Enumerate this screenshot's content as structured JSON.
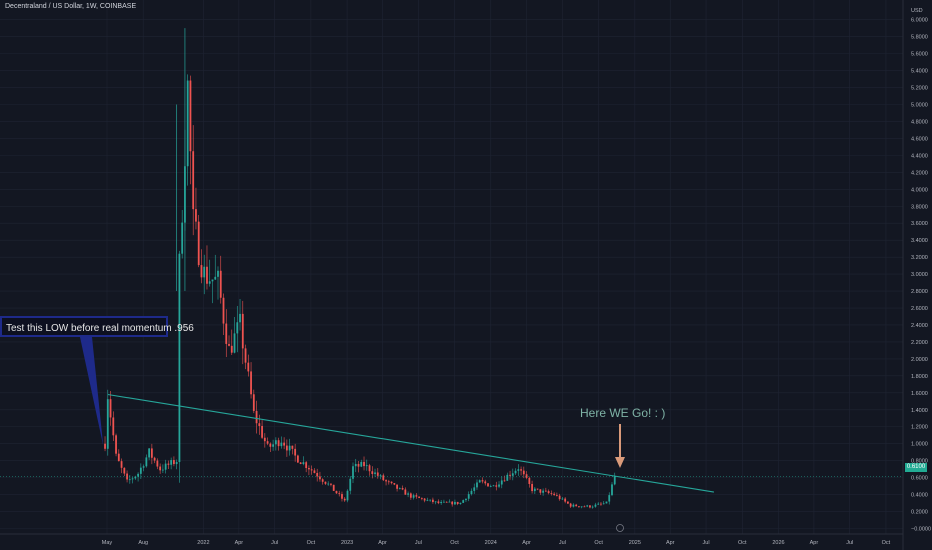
{
  "header": {
    "title": "Decentraland / US Dollar, 1W, COINBASE"
  },
  "currency": "USD",
  "current_price_label": "0.6100",
  "annotations": {
    "callout": "Test this LOW before real momentum .956",
    "here_we_go": "Here WE Go! : )"
  },
  "colors": {
    "background": "#131722",
    "grid": "#1f2433",
    "up_candle": "#26a69a",
    "down_candle": "#ef5350",
    "trendline": "#26a69a",
    "arrow": "#d99a7a",
    "price_tag": "#22ab94"
  },
  "chart_data": {
    "type": "candlestick",
    "title": "Decentraland / US Dollar, 1W, COINBASE",
    "xlabel": "",
    "ylabel": "USD",
    "ylim": [
      0,
      6.0
    ],
    "grid": true,
    "x_ticks": [
      "May",
      "Aug",
      "2022",
      "Apr",
      "Jul",
      "Oct",
      "2023",
      "Apr",
      "Jul",
      "Oct",
      "2024",
      "Apr",
      "Jul",
      "Oct",
      "2025",
      "Apr",
      "Jul",
      "Oct",
      "2026",
      "Apr",
      "Jul",
      "Oct"
    ],
    "y_ticks": [
      "6.0000",
      "5.8000",
      "5.6000",
      "5.4000",
      "5.2000",
      "5.0000",
      "4.8000",
      "4.6000",
      "4.4000",
      "4.2000",
      "4.0000",
      "3.8000",
      "3.6000",
      "3.4000",
      "3.2000",
      "3.0000",
      "2.8000",
      "2.6000",
      "2.4000",
      "2.2000",
      "2.0000",
      "1.8000",
      "1.6000",
      "1.4000",
      "1.2000",
      "1.0000",
      "0.8000",
      "0.6000",
      "0.4000",
      "0.2000",
      "−0.0000"
    ],
    "price_path": [
      [
        "2021-04-26",
        1.0
      ],
      [
        "2021-05-03",
        1.58
      ],
      [
        "2021-05-24",
        0.85
      ],
      [
        "2021-06-21",
        0.55
      ],
      [
        "2021-07-19",
        0.65
      ],
      [
        "2021-08-16",
        0.9
      ],
      [
        "2021-09-13",
        0.7
      ],
      [
        "2021-10-25",
        0.8
      ],
      [
        "2021-11-01",
        3.1
      ],
      [
        "2021-11-22",
        5.2
      ],
      [
        "2021-12-06",
        3.6
      ],
      [
        "2022-01-03",
        3.0
      ],
      [
        "2022-02-07",
        2.9
      ],
      [
        "2022-03-07",
        2.1
      ],
      [
        "2022-04-04",
        2.4
      ],
      [
        "2022-05-09",
        1.35
      ],
      [
        "2022-06-13",
        0.95
      ],
      [
        "2022-07-18",
        1.05
      ],
      [
        "2022-08-22",
        0.85
      ],
      [
        "2022-09-26",
        0.72
      ],
      [
        "2022-11-14",
        0.52
      ],
      [
        "2022-12-26",
        0.32
      ],
      [
        "2023-01-16",
        0.72
      ],
      [
        "2023-02-13",
        0.75
      ],
      [
        "2023-04-10",
        0.55
      ],
      [
        "2023-06-12",
        0.38
      ],
      [
        "2023-08-21",
        0.3
      ],
      [
        "2023-10-16",
        0.3
      ],
      [
        "2023-12-04",
        0.55
      ],
      [
        "2024-01-08",
        0.5
      ],
      [
        "2024-03-11",
        0.72
      ],
      [
        "2024-04-15",
        0.46
      ],
      [
        "2024-06-10",
        0.4
      ],
      [
        "2024-07-22",
        0.27
      ],
      [
        "2024-09-09",
        0.26
      ],
      [
        "2024-10-21",
        0.3
      ],
      [
        "2024-11-11",
        0.61
      ]
    ],
    "trendline": {
      "start": [
        "2021-05-03",
        1.58
      ],
      "end": [
        "2025-07-21",
        0.43
      ]
    },
    "spikes": [
      {
        "date": "2021-11-15",
        "high": 5.9
      },
      {
        "date": "2021-10-25",
        "high": 5.0
      }
    ],
    "last_price": 0.61
  }
}
